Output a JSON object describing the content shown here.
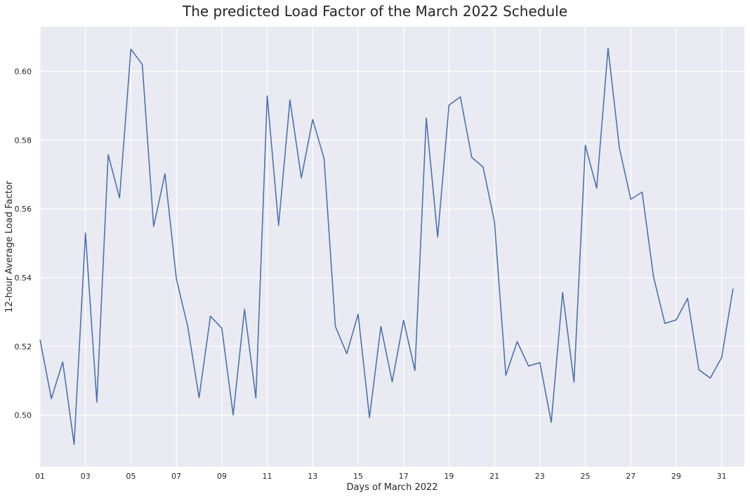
{
  "chart_data": {
    "type": "line",
    "title": "The predicted Load Factor of the March 2022 Schedule",
    "xlabel": "Days of March 2022",
    "ylabel": "12-hour Average Load Factor",
    "xlim": [
      1,
      32
    ],
    "ylim": [
      0.485,
      0.613
    ],
    "x_tick_values": [
      1,
      3,
      5,
      7,
      9,
      11,
      13,
      15,
      17,
      19,
      21,
      23,
      25,
      27,
      29,
      31
    ],
    "x_tick_labels": [
      "01",
      "03",
      "05",
      "07",
      "09",
      "11",
      "13",
      "15",
      "17",
      "19",
      "21",
      "23",
      "25",
      "27",
      "29",
      "31"
    ],
    "y_tick_values": [
      0.5,
      0.52,
      0.54,
      0.56,
      0.58,
      0.6
    ],
    "y_tick_labels": [
      "0.50",
      "0.52",
      "0.54",
      "0.56",
      "0.58",
      "0.60"
    ],
    "grid": true,
    "background_color": "#eaeaf2",
    "line_color": "#4c72b0",
    "series": [
      {
        "x": [
          1.0,
          1.5,
          2.0,
          2.5,
          3.0,
          3.5,
          4.0,
          4.5,
          5.0,
          5.5,
          6.0,
          6.5,
          7.0,
          7.5,
          8.0,
          8.5,
          9.0,
          9.5,
          10.0,
          10.5,
          11.0,
          11.5,
          12.0,
          12.5,
          13.0,
          13.5,
          14.0,
          14.5,
          15.0,
          15.5,
          16.0,
          16.5,
          17.0,
          17.5,
          18.0,
          18.5,
          19.0,
          19.5,
          20.0,
          20.5,
          21.0,
          21.5,
          22.0,
          22.5,
          23.0,
          23.5,
          24.0,
          24.5,
          25.0,
          25.5,
          26.0,
          26.5,
          27.0,
          27.5,
          28.0,
          28.5,
          29.0,
          29.5,
          30.0,
          30.5,
          31.0,
          31.5
        ],
        "values": [
          0.522,
          0.5048,
          0.5155,
          0.4915,
          0.553,
          0.5038,
          0.5758,
          0.5632,
          0.6065,
          0.602,
          0.5549,
          0.5702,
          0.5397,
          0.5258,
          0.5051,
          0.5288,
          0.5253,
          0.5001,
          0.5308,
          0.505,
          0.5929,
          0.5552,
          0.5917,
          0.569,
          0.586,
          0.5747,
          0.5258,
          0.5179,
          0.5294,
          0.4993,
          0.5258,
          0.5097,
          0.5276,
          0.513,
          0.5864,
          0.5518,
          0.5902,
          0.5926,
          0.575,
          0.5722,
          0.5563,
          0.5116,
          0.5214,
          0.5143,
          0.5153,
          0.4979,
          0.5357,
          0.5096,
          0.5785,
          0.566,
          0.6068,
          0.5777,
          0.5628,
          0.5649,
          0.5403,
          0.5267,
          0.5277,
          0.534,
          0.5132,
          0.5108,
          0.5168,
          0.5368
        ]
      }
    ]
  }
}
